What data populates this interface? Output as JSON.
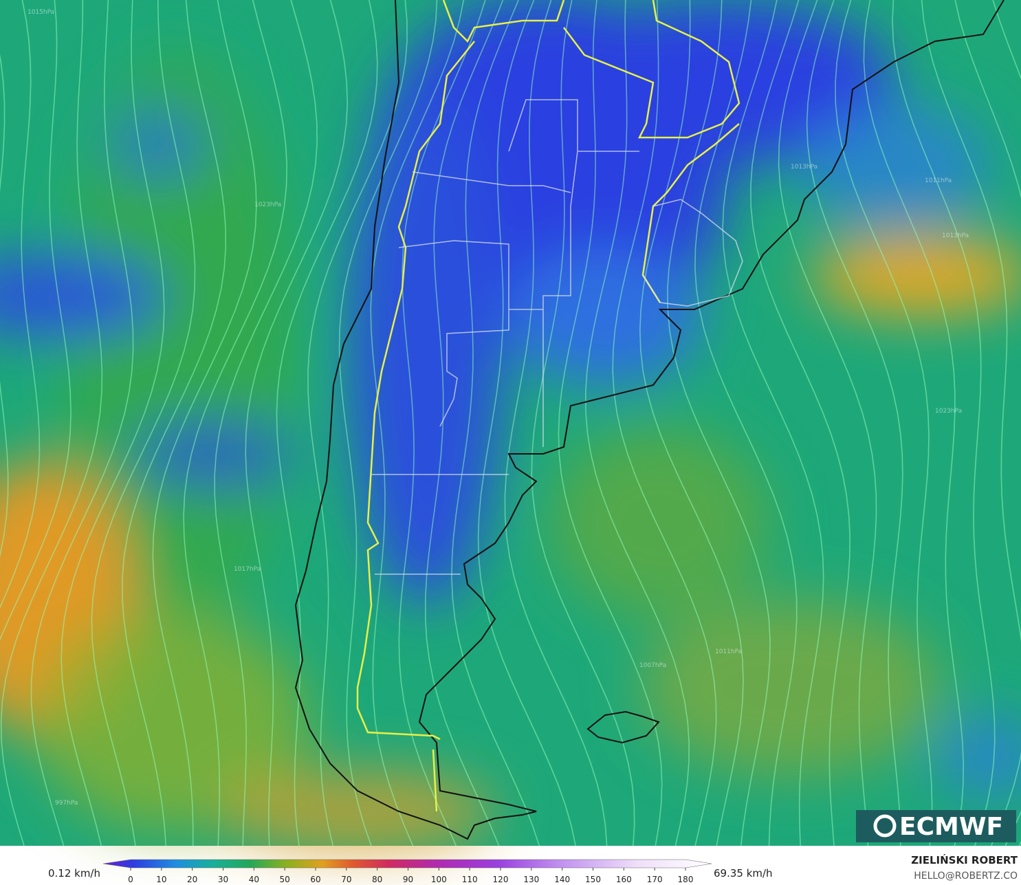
{
  "logo": "ECMWF",
  "credits": {
    "author": "ZIELIŃSKI ROBERT",
    "contact": "HELLO@ROBERTZ.CO"
  },
  "legend": {
    "min_label": "0.12 km/h",
    "max_label": "69.35 km/h",
    "ticks": [
      0,
      10,
      20,
      30,
      40,
      50,
      60,
      70,
      80,
      90,
      100,
      110,
      120,
      130,
      140,
      150,
      160,
      170,
      180
    ]
  },
  "pressure_labels": [
    "1015hPa",
    "1013hPa",
    "1011hPa",
    "1023hPa",
    "1017hPa",
    "1013hPa",
    "1007hPa",
    "997hPa",
    "1023hPa",
    "1011hPa"
  ]
}
